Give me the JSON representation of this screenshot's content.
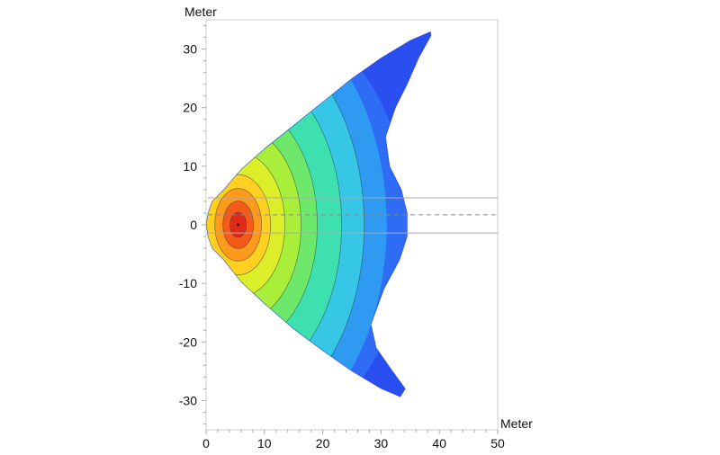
{
  "chart_data": {
    "type": "heatmap",
    "subtype": "filled-contour",
    "xlabel": "Meter",
    "ylabel": "Meter",
    "xlim": [
      0,
      50
    ],
    "ylim": [
      -35,
      35
    ],
    "xticks": [
      "0",
      "10",
      "20",
      "30",
      "40",
      "50"
    ],
    "yticks": [
      "30",
      "20",
      "10",
      "0",
      "-10",
      "-20",
      "-30"
    ],
    "grid": false,
    "legend": "none",
    "colormap": [
      "#2a4ff0",
      "#2f6cf5",
      "#2f9af2",
      "#36c7e6",
      "#3fe0b0",
      "#6ee86a",
      "#a8ee3a",
      "#dcee2a",
      "#ffd020",
      "#ff9a1c",
      "#f55a1a",
      "#e02a18"
    ],
    "peak": {
      "x": 5.5,
      "y": 0
    },
    "outline": [
      [
        0,
        0
      ],
      [
        0.3,
        2
      ],
      [
        1,
        4
      ],
      [
        3,
        6
      ],
      [
        6,
        9.5
      ],
      [
        10,
        13
      ],
      [
        15,
        17
      ],
      [
        20,
        21
      ],
      [
        25,
        25
      ],
      [
        30,
        28.5
      ],
      [
        35,
        31.5
      ],
      [
        38.5,
        33
      ],
      [
        38.6,
        32.3
      ],
      [
        36.5,
        28.5
      ],
      [
        34.5,
        24
      ],
      [
        32.5,
        20
      ],
      [
        30.8,
        15
      ],
      [
        31.5,
        10
      ],
      [
        33.5,
        6
      ],
      [
        34.5,
        2
      ],
      [
        34.5,
        -2
      ],
      [
        33.2,
        -6
      ],
      [
        30.5,
        -11
      ],
      [
        28.3,
        -17
      ],
      [
        29.2,
        -21
      ],
      [
        32,
        -25
      ],
      [
        34.2,
        -28
      ],
      [
        33.3,
        -29.4
      ],
      [
        30,
        -28
      ],
      [
        25,
        -25
      ],
      [
        20,
        -21.5
      ],
      [
        15,
        -17.8
      ],
      [
        10,
        -13.5
      ],
      [
        6,
        -9.8
      ],
      [
        3,
        -6
      ],
      [
        1,
        -4
      ],
      [
        0.3,
        -2
      ]
    ],
    "reference_lines": [
      {
        "y": 4.6,
        "style": "solid"
      },
      {
        "y": 1.7,
        "style": "dashed"
      },
      {
        "y": -1.4,
        "style": "solid"
      }
    ]
  }
}
